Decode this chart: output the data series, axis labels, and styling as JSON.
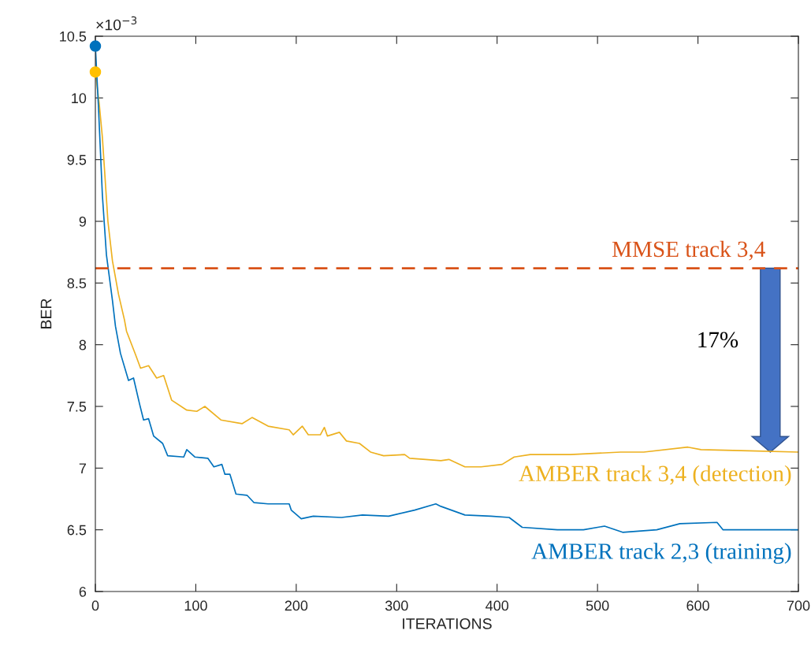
{
  "chart_data": {
    "type": "line",
    "xlabel": "ITERATIONS",
    "ylabel": "BER",
    "xlim": [
      0,
      700
    ],
    "xticks": [
      0,
      100,
      200,
      300,
      400,
      500,
      600,
      700
    ],
    "ylim": [
      6,
      10.5
    ],
    "yticks": [
      6,
      6.5,
      7,
      7.5,
      8,
      8.5,
      9,
      9.5,
      10,
      10.5
    ],
    "grid": false,
    "line_style": "solid",
    "marker": "none",
    "series": [
      {
        "name": "AMBER track 3,4 (detection)",
        "color": "#edb120",
        "x": [
          0,
          4,
          7,
          12.5,
          17,
          23,
          29,
          31,
          40,
          45,
          53,
          61,
          68,
          76,
          91,
          101,
          109,
          125,
          146,
          156,
          172,
          193,
          197,
          206,
          212,
          224,
          228,
          231,
          243,
          250,
          263,
          274,
          287,
          308,
          313,
          329,
          344,
          352,
          368,
          384,
          405,
          417,
          433,
          473,
          523,
          546,
          590,
          603,
          651,
          700
        ],
        "values": [
          10.21,
          9.94,
          9.68,
          9.0,
          8.68,
          8.41,
          8.2,
          8.11,
          7.92,
          7.81,
          7.83,
          7.73,
          7.75,
          7.55,
          7.47,
          7.46,
          7.5,
          7.39,
          7.36,
          7.41,
          7.34,
          7.31,
          7.27,
          7.34,
          7.27,
          7.27,
          7.33,
          7.26,
          7.29,
          7.22,
          7.2,
          7.13,
          7.1,
          7.11,
          7.08,
          7.07,
          7.06,
          7.07,
          7.01,
          7.01,
          7.03,
          7.09,
          7.11,
          7.11,
          7.13,
          7.13,
          7.17,
          7.15,
          7.14,
          7.13
        ]
      },
      {
        "name": "AMBER track 2,3 (training)",
        "color": "#0072bd",
        "x": [
          0,
          3,
          7,
          11,
          17,
          20,
          25,
          33,
          38,
          44,
          48,
          53,
          58,
          67,
          72,
          88,
          91,
          99,
          112,
          118,
          126,
          129,
          134,
          140,
          151,
          158,
          172,
          193,
          195,
          205,
          217,
          245,
          266,
          292,
          318,
          339,
          344,
          368,
          394,
          412,
          425,
          460,
          486,
          507,
          525,
          559,
          582,
          619,
          625,
          669,
          700
        ],
        "values": [
          10.42,
          9.94,
          9.21,
          8.73,
          8.36,
          8.15,
          7.93,
          7.71,
          7.73,
          7.52,
          7.39,
          7.4,
          7.26,
          7.2,
          7.1,
          7.09,
          7.15,
          7.09,
          7.08,
          7.01,
          7.03,
          6.95,
          6.95,
          6.79,
          6.78,
          6.72,
          6.71,
          6.71,
          6.66,
          6.59,
          6.61,
          6.6,
          6.62,
          6.61,
          6.66,
          6.71,
          6.69,
          6.62,
          6.61,
          6.6,
          6.52,
          6.5,
          6.5,
          6.53,
          6.48,
          6.5,
          6.55,
          6.56,
          6.5,
          6.5,
          6.5
        ]
      },
      {
        "type": "scatter",
        "marker": "circle",
        "x": [
          0,
          0
        ],
        "values": [
          10.42,
          10.21
        ],
        "colors": [
          "#0072bd",
          "#ffc000"
        ]
      }
    ],
    "ref_lines": [
      {
        "axis": "y",
        "value": 8.62,
        "label": "MMSE track 3,4",
        "color": "#d95319",
        "line_style": "dashed"
      }
    ],
    "annotations": [
      "×10$^{−3}$",
      "17%"
    ]
  }
}
